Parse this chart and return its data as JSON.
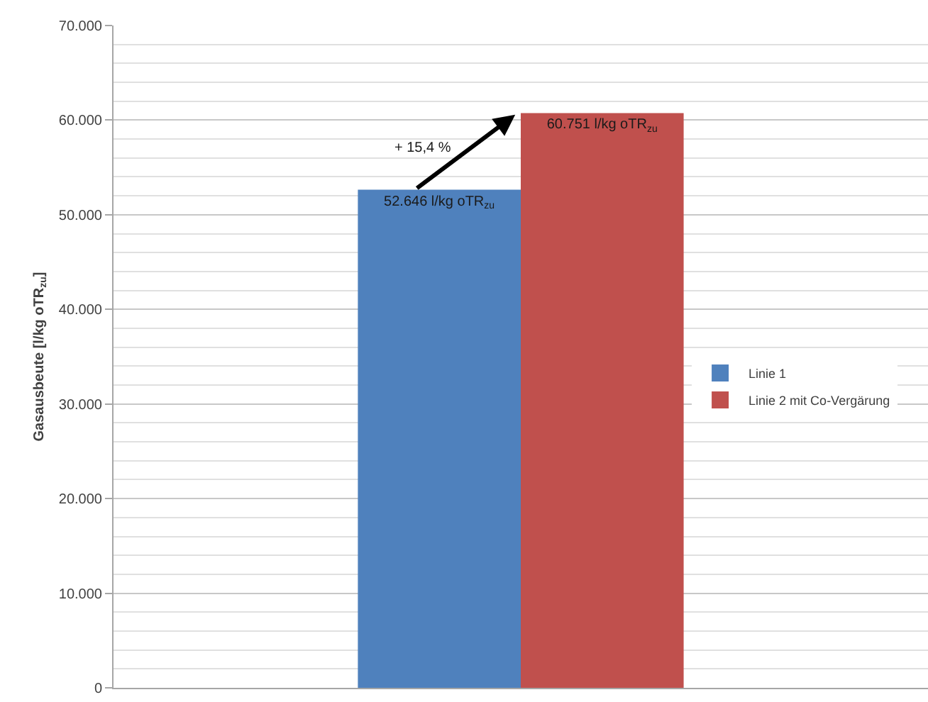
{
  "chart_data": {
    "type": "bar",
    "ylabel": "Gasausbeute [l/kg oTR$_{zu}$]",
    "categories": [
      null
    ],
    "series": [
      {
        "name": "Linie 1",
        "color": "#4f81bd",
        "values": [
          52646
        ],
        "value_labels": [
          "52.646 l/kg oTR$_{zu}$"
        ]
      },
      {
        "name": "Linie 2 mit Co-Vergärung",
        "color": "#c0504d",
        "values": [
          60751
        ],
        "value_labels": [
          "60.751 l/kg oTR$_{zu}$"
        ]
      }
    ],
    "ylim": [
      0,
      70000
    ],
    "yticks": [
      0,
      {
        "value": 2000,
        "label": null
      },
      {
        "value": 4000,
        "label": null
      },
      {
        "value": 6000,
        "label": null
      },
      {
        "value": 8000,
        "label": null
      },
      {
        "value": 10000,
        "label": "10.000"
      },
      {
        "value": 12000,
        "label": null
      },
      {
        "value": 14000,
        "label": null
      },
      {
        "value": 16000,
        "label": null
      },
      {
        "value": 18000,
        "label": null
      },
      {
        "value": 20000,
        "label": "20.000"
      },
      {
        "value": 22000,
        "label": null
      },
      {
        "value": 24000,
        "label": null
      },
      {
        "value": 26000,
        "label": null
      },
      {
        "value": 28000,
        "label": null
      },
      {
        "value": 30000,
        "label": "30.000"
      },
      {
        "value": 32000,
        "label": null
      },
      {
        "value": 34000,
        "label": null
      },
      {
        "value": 36000,
        "label": null
      },
      {
        "value": 38000,
        "label": null
      },
      {
        "value": 40000,
        "label": "40.000"
      },
      {
        "value": 42000,
        "label": null
      },
      {
        "value": 44000,
        "label": null
      },
      {
        "value": 46000,
        "label": null
      },
      {
        "value": 48000,
        "label": null
      },
      {
        "value": 50000,
        "label": "50.000"
      },
      {
        "value": 52000,
        "label": null
      },
      {
        "value": 54000,
        "label": null
      },
      {
        "value": 56000,
        "label": null
      },
      {
        "value": 58000,
        "label": null
      },
      {
        "value": 60000,
        "label": "60.000"
      },
      {
        "value": 62000,
        "label": null
      },
      {
        "value": 64000,
        "label": null
      },
      {
        "value": 66000,
        "label": null
      },
      {
        "value": 68000,
        "label": null
      },
      {
        "value": 70000,
        "label": "70.000"
      }
    ],
    "grid": "y",
    "legend": "right",
    "annotations": [
      "+ 15,4 %"
    ]
  }
}
